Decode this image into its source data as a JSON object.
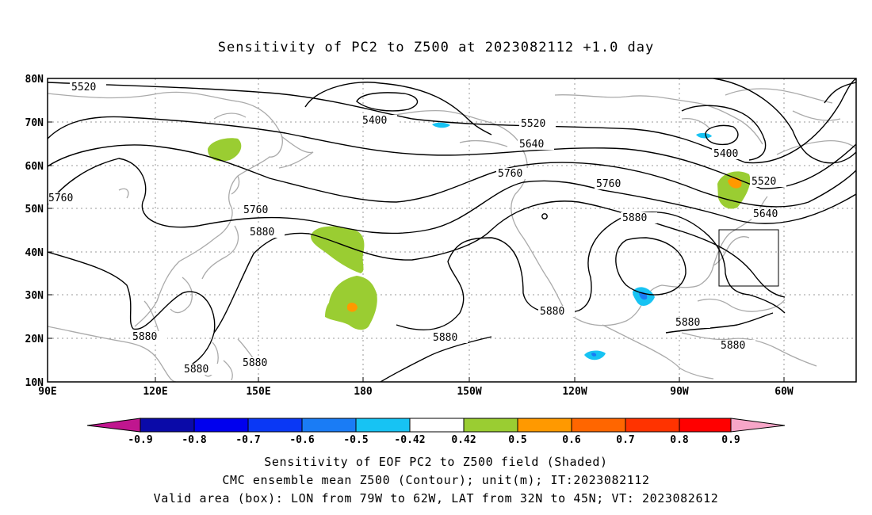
{
  "title": "Sensitivity of PC2 to Z500 at 2023082112 +1.0 day",
  "axes": {
    "lat_ticks": [
      "80N",
      "70N",
      "60N",
      "50N",
      "40N",
      "30N",
      "20N",
      "10N"
    ],
    "lon_ticks": [
      "90E",
      "120E",
      "150E",
      "180",
      "150W",
      "120W",
      "90W",
      "60W"
    ]
  },
  "contour_labels": [
    {
      "id": "a",
      "text": "5520"
    },
    {
      "id": "b",
      "text": "5400"
    },
    {
      "id": "c",
      "text": "5520"
    },
    {
      "id": "d",
      "text": "5640"
    },
    {
      "id": "e",
      "text": "5760"
    },
    {
      "id": "f",
      "text": "5400"
    },
    {
      "id": "g",
      "text": "5520"
    },
    {
      "id": "h",
      "text": "5760"
    },
    {
      "id": "i",
      "text": "5760"
    },
    {
      "id": "j",
      "text": "5880"
    },
    {
      "id": "k",
      "text": "5640"
    },
    {
      "id": "l",
      "text": "5760"
    },
    {
      "id": "m",
      "text": "5880"
    },
    {
      "id": "n",
      "text": "5880"
    },
    {
      "id": "o",
      "text": "5880"
    },
    {
      "id": "p",
      "text": "5880"
    },
    {
      "id": "q",
      "text": "5880"
    },
    {
      "id": "r",
      "text": "5880"
    },
    {
      "id": "s",
      "text": "5880"
    },
    {
      "id": "t",
      "text": "5880"
    }
  ],
  "colorbar": {
    "labels": [
      "-0.9",
      "-0.8",
      "-0.7",
      "-0.6",
      "-0.5",
      "-0.42",
      "0.42",
      "0.5",
      "0.6",
      "0.7",
      "0.8",
      "0.9"
    ],
    "colors": [
      "#c0168f",
      "#0a0aa8",
      "#0000ee",
      "#0a38f5",
      "#1a7cf5",
      "#17c3f3",
      "#ffffff",
      "#9acd32",
      "#ff9900",
      "#ff6600",
      "#ff3300",
      "#ff0000",
      "#f7a6c8"
    ]
  },
  "valid_box": {
    "lon_from": "79W",
    "lon_to": "62W",
    "lat_from": "32N",
    "lat_to": "45N"
  },
  "captions": {
    "line1": "Sensitivity of EOF PC2 to Z500 field (Shaded)",
    "line2": "CMC ensemble mean Z500 (Contour); unit(m); IT:2023082112",
    "line3": "Valid area (box): LON from 79W to 62W, LAT from 32N to 45N; VT: 2023082612"
  }
}
